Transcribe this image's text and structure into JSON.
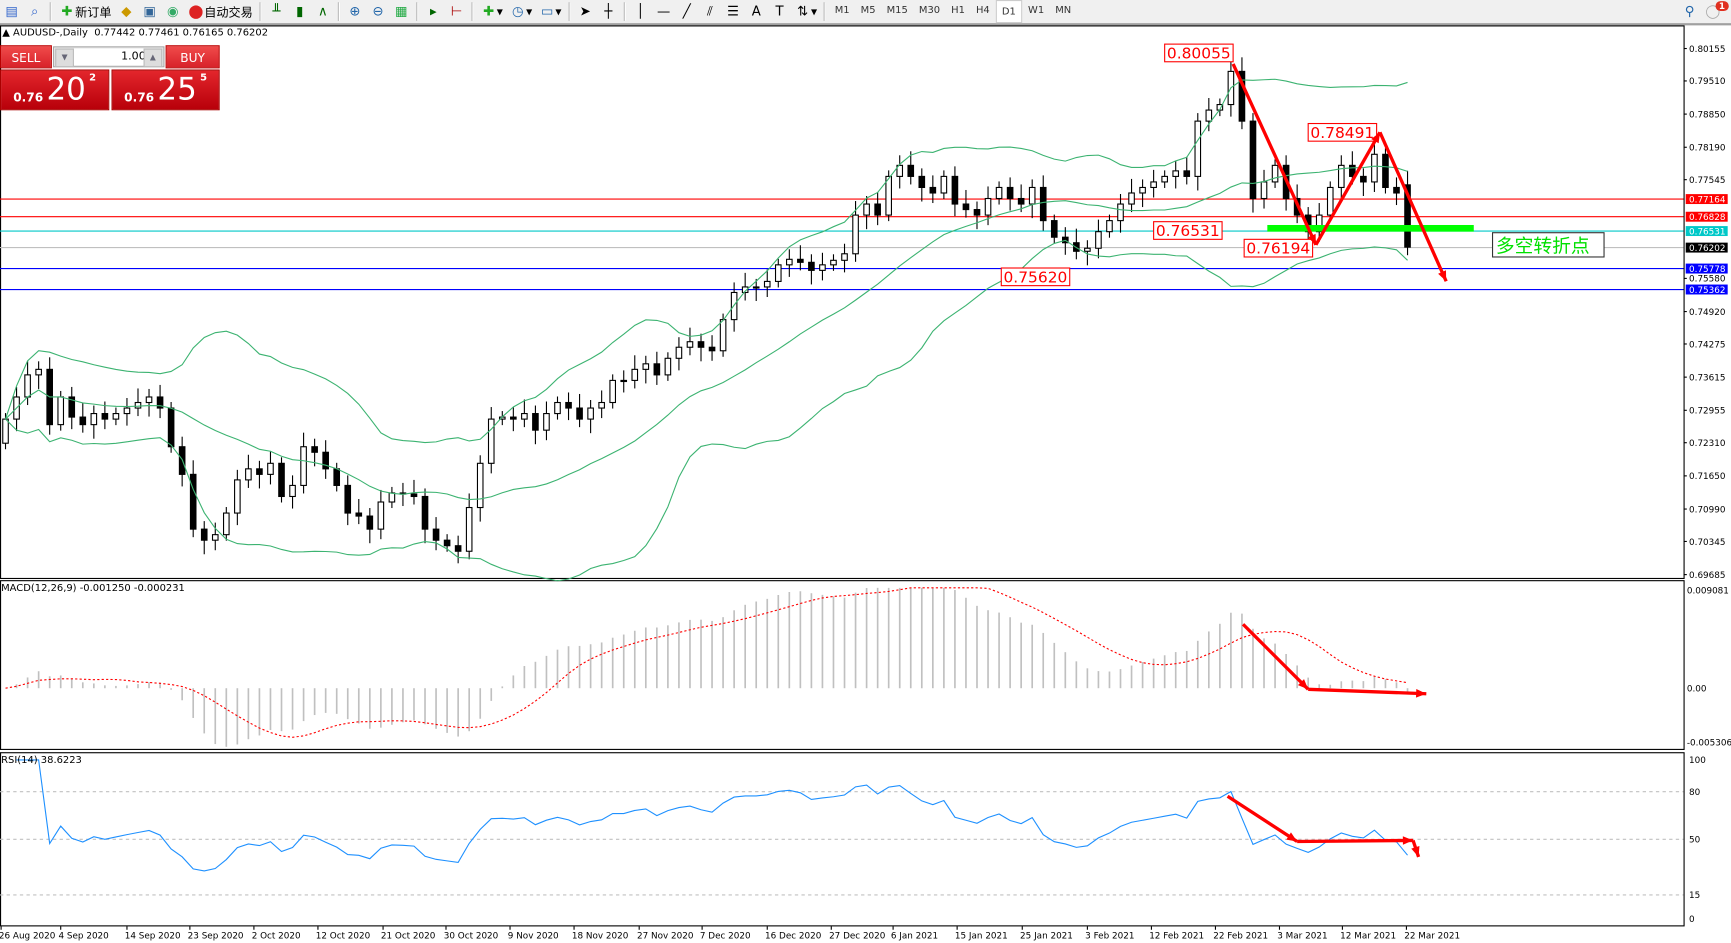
{
  "toolbar": {
    "new_order": "新订单",
    "auto_trading": "自动交易",
    "timeframes": [
      "M1",
      "M5",
      "M15",
      "M30",
      "H1",
      "H4",
      "D1",
      "W1",
      "MN"
    ],
    "active_timeframe": "D1",
    "notification_count": "1"
  },
  "chart": {
    "symbol": "AUDUSD-,Daily",
    "ohlc": "0.77442 0.77461 0.76165 0.76202",
    "colors": {
      "bollinger": "#3cb371",
      "macd_hist": "#c0c0c0",
      "macd_signal": "#ff0000",
      "rsi": "#1e90ff",
      "annotation": "#ff0000",
      "zone": "#00ff00"
    }
  },
  "trade_panel": {
    "sell_label": "SELL",
    "buy_label": "BUY",
    "lot": "1.00",
    "sell_prefix": "0.76",
    "sell_big": "20",
    "sell_pip": "2",
    "buy_prefix": "0.76",
    "buy_big": "25",
    "buy_pip": "5"
  },
  "price_axis": [
    "0.80155",
    "0.79510",
    "0.78850",
    "0.78190",
    "0.77545",
    "0.74920",
    "0.74275",
    "0.73615",
    "0.72955",
    "0.72310",
    "0.71650",
    "0.70990",
    "0.70345",
    "0.69685",
    "0.75580"
  ],
  "levels": [
    {
      "price": "0.77164",
      "color": "#ff0000"
    },
    {
      "price": "0.76828",
      "color": "#ff0000"
    },
    {
      "price": "0.76531",
      "color": "#00c8c8"
    },
    {
      "price": "0.76202",
      "color": "#000000",
      "line": "#c0c0c0"
    },
    {
      "price": "0.75778",
      "color": "#0000ff"
    },
    {
      "price": "0.75362",
      "color": "#0000ff"
    }
  ],
  "annotations": {
    "high": "0.80055",
    "lower_high": "0.78491",
    "support": "0.76531",
    "low": "0.76194",
    "earlier_low": "0.75620",
    "note": "多空转折点"
  },
  "macd": {
    "label": "MACD(12,26,9) -0.001250 -0.000231",
    "axis_top": "0.009081",
    "axis_zero": "0.00",
    "axis_bottom": "-0.005306"
  },
  "rsi": {
    "label": "RSI(14) 38.6223",
    "levels": [
      "100",
      "80",
      "50",
      "15",
      "0"
    ]
  },
  "dates": [
    "26 Aug 2020",
    "4 Sep 2020",
    "14 Sep 2020",
    "23 Sep 2020",
    "2 Oct 2020",
    "12 Oct 2020",
    "21 Oct 2020",
    "30 Oct 2020",
    "9 Nov 2020",
    "18 Nov 2020",
    "27 Nov 2020",
    "7 Dec 2020",
    "16 Dec 2020",
    "27 Dec 2020",
    "6 Jan 2021",
    "15 Jan 2021",
    "25 Jan 2021",
    "3 Feb 2021",
    "12 Feb 2021",
    "22 Feb 2021",
    "3 Mar 2021",
    "12 Mar 2021",
    "22 Mar 2021"
  ],
  "chart_data": {
    "type": "candlestick",
    "first_open": 0.723,
    "last_open": 0.77442,
    "closes": [
      0.7278,
      0.7322,
      0.7366,
      0.7377,
      0.7267,
      0.7322,
      0.7282,
      0.7267,
      0.7289,
      0.7278,
      0.7289,
      0.73,
      0.7311,
      0.7322,
      0.73,
      0.7223,
      0.7168,
      0.7059,
      0.7037,
      0.7048,
      0.7091,
      0.7157,
      0.7179,
      0.7168,
      0.719,
      0.7124,
      0.7146,
      0.7223,
      0.7212,
      0.7179,
      0.7146,
      0.7091,
      0.7085,
      0.7059,
      0.7113,
      0.7131,
      0.7129,
      0.7124,
      0.7059,
      0.7037,
      0.7026,
      0.7015,
      0.7102,
      0.719,
      0.7278,
      0.7282,
      0.7278,
      0.7289,
      0.7256,
      0.7289,
      0.7311,
      0.73,
      0.7278,
      0.73,
      0.7311,
      0.7355,
      0.7355,
      0.7377,
      0.7388,
      0.7366,
      0.7399,
      0.7421,
      0.7432,
      0.7421,
      0.7414,
      0.7476,
      0.753,
      0.7541,
      0.7541,
      0.7552,
      0.7585,
      0.7596,
      0.759,
      0.7574,
      0.7585,
      0.7594,
      0.7607,
      0.7684,
      0.7706,
      0.7684,
      0.7761,
      0.7783,
      0.7761,
      0.7739,
      0.7728,
      0.7761,
      0.7706,
      0.7695,
      0.7684,
      0.7717,
      0.7739,
      0.7717,
      0.7706,
      0.7739,
      0.7673,
      0.764,
      0.7629,
      0.7612,
      0.7618,
      0.7651,
      0.7673,
      0.7706,
      0.7728,
      0.7739,
      0.775,
      0.7761,
      0.7772,
      0.7761,
      0.7871,
      0.7893,
      0.7904,
      0.797,
      0.7871,
      0.7717,
      0.775,
      0.7783,
      0.7717,
      0.7684,
      0.7651,
      0.7684,
      0.7739,
      0.7783,
      0.7761,
      0.775,
      0.7805,
      0.7739,
      0.7728,
      0.76202
    ],
    "price_range": [
      0.69685,
      0.80155
    ]
  }
}
